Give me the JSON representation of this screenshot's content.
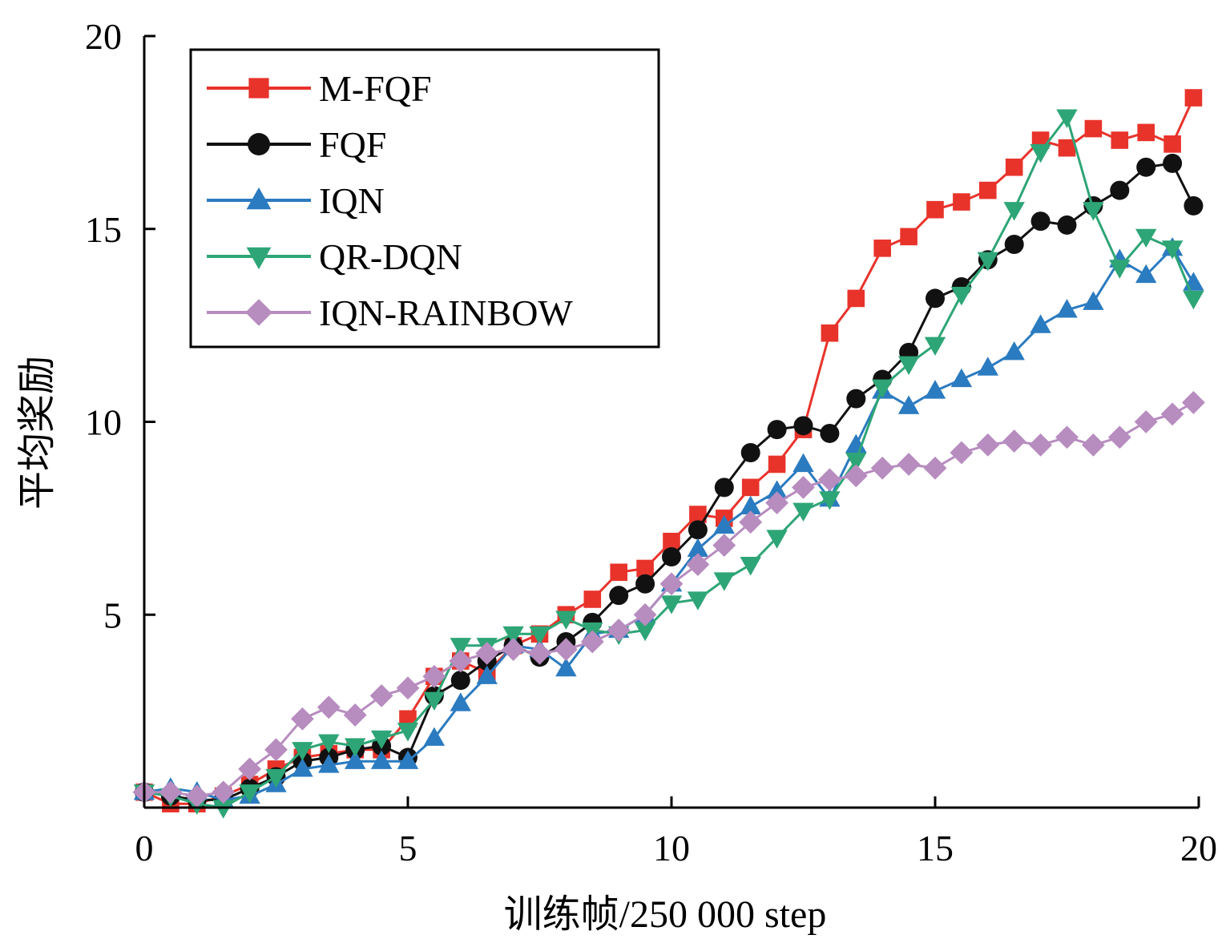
{
  "chart_data": {
    "type": "line",
    "title": "",
    "xlabel": "训练帧/250 000 step",
    "ylabel": "平均奖励",
    "xlim": [
      0,
      20
    ],
    "ylim": [
      0,
      20
    ],
    "x_ticks": [
      0,
      5,
      10,
      15,
      20
    ],
    "x_tick_labels": [
      "0",
      "5",
      "10",
      "15",
      "20"
    ],
    "y_ticks": [
      5,
      10,
      15,
      20
    ],
    "y_tick_labels": [
      "5",
      "10",
      "15",
      "20"
    ],
    "grid": false,
    "legend_position": "top-left",
    "series": [
      {
        "name": "M-FQF",
        "color": "#e8332b",
        "marker": "square",
        "points": [
          [
            0,
            0.4
          ],
          [
            0.5,
            0.1
          ],
          [
            1.0,
            0.1
          ],
          [
            1.5,
            0.3
          ],
          [
            2.0,
            0.6
          ],
          [
            2.5,
            1.0
          ],
          [
            3.0,
            1.3
          ],
          [
            3.5,
            1.4
          ],
          [
            4.0,
            1.5
          ],
          [
            4.5,
            1.5
          ],
          [
            5.0,
            2.3
          ],
          [
            5.5,
            3.4
          ],
          [
            6.0,
            3.8
          ],
          [
            6.5,
            3.5
          ],
          [
            7.0,
            4.2
          ],
          [
            7.5,
            4.5
          ],
          [
            8.0,
            5.0
          ],
          [
            8.5,
            5.4
          ],
          [
            9.0,
            6.1
          ],
          [
            9.5,
            6.2
          ],
          [
            10.0,
            6.9
          ],
          [
            10.5,
            7.6
          ],
          [
            11.0,
            7.5
          ],
          [
            11.5,
            8.3
          ],
          [
            12.0,
            8.9
          ],
          [
            12.5,
            9.8
          ],
          [
            13.0,
            12.3
          ],
          [
            13.5,
            13.2
          ],
          [
            14.0,
            14.5
          ],
          [
            14.5,
            14.8
          ],
          [
            15.0,
            15.5
          ],
          [
            15.5,
            15.7
          ],
          [
            16.0,
            16.0
          ],
          [
            16.5,
            16.6
          ],
          [
            17.0,
            17.3
          ],
          [
            17.5,
            17.1
          ],
          [
            18.0,
            17.6
          ],
          [
            18.5,
            17.3
          ],
          [
            19.0,
            17.5
          ],
          [
            19.5,
            17.2
          ],
          [
            19.9,
            18.4
          ]
        ]
      },
      {
        "name": "FQF",
        "color": "#111111",
        "marker": "circle",
        "points": [
          [
            0,
            0.4
          ],
          [
            0.5,
            0.3
          ],
          [
            1.0,
            0.2
          ],
          [
            1.5,
            0.2
          ],
          [
            2.0,
            0.5
          ],
          [
            2.5,
            0.8
          ],
          [
            3.0,
            1.2
          ],
          [
            3.5,
            1.3
          ],
          [
            4.0,
            1.5
          ],
          [
            4.5,
            1.6
          ],
          [
            5.0,
            1.3
          ],
          [
            5.5,
            2.9
          ],
          [
            6.0,
            3.3
          ],
          [
            6.5,
            3.8
          ],
          [
            7.0,
            4.2
          ],
          [
            7.5,
            3.9
          ],
          [
            8.0,
            4.3
          ],
          [
            8.5,
            4.8
          ],
          [
            9.0,
            5.5
          ],
          [
            9.5,
            5.8
          ],
          [
            10.0,
            6.5
          ],
          [
            10.5,
            7.2
          ],
          [
            11.0,
            8.3
          ],
          [
            11.5,
            9.2
          ],
          [
            12.0,
            9.8
          ],
          [
            12.5,
            9.9
          ],
          [
            13.0,
            9.7
          ],
          [
            13.5,
            10.6
          ],
          [
            14.0,
            11.1
          ],
          [
            14.5,
            11.8
          ],
          [
            15.0,
            13.2
          ],
          [
            15.5,
            13.5
          ],
          [
            16.0,
            14.2
          ],
          [
            16.5,
            14.6
          ],
          [
            17.0,
            15.2
          ],
          [
            17.5,
            15.1
          ],
          [
            18.0,
            15.6
          ],
          [
            18.5,
            16.0
          ],
          [
            19.0,
            16.6
          ],
          [
            19.5,
            16.7
          ],
          [
            19.9,
            15.6
          ]
        ]
      },
      {
        "name": "IQN",
        "color": "#2b7bc0",
        "marker": "triangle-up",
        "points": [
          [
            0,
            0.4
          ],
          [
            0.5,
            0.5
          ],
          [
            1.0,
            0.4
          ],
          [
            1.5,
            0.2
          ],
          [
            2.0,
            0.3
          ],
          [
            2.5,
            0.6
          ],
          [
            3.0,
            1.0
          ],
          [
            3.5,
            1.1
          ],
          [
            4.0,
            1.2
          ],
          [
            4.5,
            1.2
          ],
          [
            5.0,
            1.2
          ],
          [
            5.5,
            1.8
          ],
          [
            6.0,
            2.7
          ],
          [
            6.5,
            3.4
          ],
          [
            7.0,
            4.2
          ],
          [
            7.5,
            4.1
          ],
          [
            8.0,
            3.6
          ],
          [
            8.5,
            4.5
          ],
          [
            9.0,
            4.6
          ],
          [
            9.5,
            5.0
          ],
          [
            10.0,
            5.8
          ],
          [
            10.5,
            6.7
          ],
          [
            11.0,
            7.3
          ],
          [
            11.5,
            7.8
          ],
          [
            12.0,
            8.2
          ],
          [
            12.5,
            8.9
          ],
          [
            13.0,
            8.0
          ],
          [
            13.5,
            9.4
          ],
          [
            14.0,
            10.8
          ],
          [
            14.5,
            10.4
          ],
          [
            15.0,
            10.8
          ],
          [
            15.5,
            11.1
          ],
          [
            16.0,
            11.4
          ],
          [
            16.5,
            11.8
          ],
          [
            17.0,
            12.5
          ],
          [
            17.5,
            12.9
          ],
          [
            18.0,
            13.1
          ],
          [
            18.5,
            14.2
          ],
          [
            19.0,
            13.8
          ],
          [
            19.5,
            14.5
          ],
          [
            19.9,
            13.6
          ]
        ]
      },
      {
        "name": "QR-DQN",
        "color": "#2ea576",
        "marker": "triangle-down",
        "points": [
          [
            0,
            0.4
          ],
          [
            0.5,
            0.3
          ],
          [
            1.0,
            0.1
          ],
          [
            1.5,
            0.0
          ],
          [
            2.0,
            0.4
          ],
          [
            2.5,
            0.8
          ],
          [
            3.0,
            1.5
          ],
          [
            3.5,
            1.7
          ],
          [
            4.0,
            1.6
          ],
          [
            4.5,
            1.8
          ],
          [
            5.0,
            2.0
          ],
          [
            5.5,
            2.8
          ],
          [
            6.0,
            4.2
          ],
          [
            6.5,
            4.2
          ],
          [
            7.0,
            4.5
          ],
          [
            7.5,
            4.5
          ],
          [
            8.0,
            4.9
          ],
          [
            8.5,
            4.6
          ],
          [
            9.0,
            4.5
          ],
          [
            9.5,
            4.6
          ],
          [
            10.0,
            5.3
          ],
          [
            10.5,
            5.4
          ],
          [
            11.0,
            5.9
          ],
          [
            11.5,
            6.3
          ],
          [
            12.0,
            7.0
          ],
          [
            12.5,
            7.7
          ],
          [
            13.0,
            8.0
          ],
          [
            13.5,
            9.0
          ],
          [
            14.0,
            10.9
          ],
          [
            14.5,
            11.5
          ],
          [
            15.0,
            12.0
          ],
          [
            15.5,
            13.3
          ],
          [
            16.0,
            14.2
          ],
          [
            16.5,
            15.5
          ],
          [
            17.0,
            17.0
          ],
          [
            17.5,
            17.9
          ],
          [
            18.0,
            15.5
          ],
          [
            18.5,
            14.0
          ],
          [
            19.0,
            14.8
          ],
          [
            19.5,
            14.5
          ],
          [
            19.9,
            13.2
          ]
        ]
      },
      {
        "name": "IQN-RAINBOW",
        "color": "#b78cbf",
        "marker": "diamond",
        "points": [
          [
            0,
            0.4
          ],
          [
            0.5,
            0.4
          ],
          [
            1.0,
            0.3
          ],
          [
            1.5,
            0.4
          ],
          [
            2.0,
            1.0
          ],
          [
            2.5,
            1.5
          ],
          [
            3.0,
            2.3
          ],
          [
            3.5,
            2.6
          ],
          [
            4.0,
            2.4
          ],
          [
            4.5,
            2.9
          ],
          [
            5.0,
            3.1
          ],
          [
            5.5,
            3.4
          ],
          [
            6.0,
            3.8
          ],
          [
            6.5,
            4.0
          ],
          [
            7.0,
            4.1
          ],
          [
            7.5,
            4.0
          ],
          [
            8.0,
            4.1
          ],
          [
            8.5,
            4.3
          ],
          [
            9.0,
            4.6
          ],
          [
            9.5,
            5.0
          ],
          [
            10.0,
            5.8
          ],
          [
            10.5,
            6.3
          ],
          [
            11.0,
            6.8
          ],
          [
            11.5,
            7.4
          ],
          [
            12.0,
            7.9
          ],
          [
            12.5,
            8.3
          ],
          [
            13.0,
            8.5
          ],
          [
            13.5,
            8.6
          ],
          [
            14.0,
            8.8
          ],
          [
            14.5,
            8.9
          ],
          [
            15.0,
            8.8
          ],
          [
            15.5,
            9.2
          ],
          [
            16.0,
            9.4
          ],
          [
            16.5,
            9.5
          ],
          [
            17.0,
            9.4
          ],
          [
            17.5,
            9.6
          ],
          [
            18.0,
            9.4
          ],
          [
            18.5,
            9.6
          ],
          [
            19.0,
            10.0
          ],
          [
            19.5,
            10.2
          ],
          [
            19.9,
            10.5
          ]
        ]
      }
    ]
  }
}
